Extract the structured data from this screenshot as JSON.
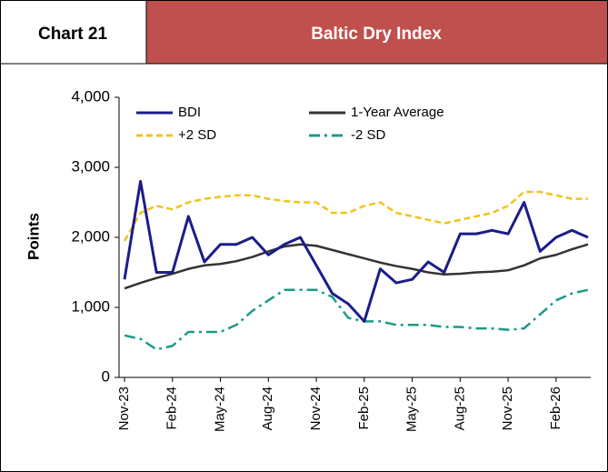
{
  "header": {
    "label": "Chart 21",
    "title": "Baltic Dry Index"
  },
  "chart_data": {
    "type": "line",
    "categories": [
      "Nov-23",
      null,
      null,
      "Feb-24",
      null,
      null,
      "May-24",
      null,
      null,
      "Aug-24",
      null,
      null,
      "Nov-24",
      null,
      null,
      "Feb-25",
      null,
      null,
      "May-25",
      null,
      null,
      "Aug-25",
      null,
      null,
      "Nov-25",
      null,
      null,
      "Feb-26",
      null,
      null
    ],
    "series": [
      {
        "name": "BDI",
        "color": "#1c1c8a",
        "style": "solid",
        "values": [
          1400,
          2800,
          1500,
          1500,
          2300,
          1650,
          1900,
          1900,
          2000,
          1750,
          1900,
          2000,
          1600,
          1200,
          1050,
          800,
          1550,
          1350,
          1400,
          1650,
          1500,
          2050,
          2050,
          2100,
          2050,
          2500,
          1800,
          2000,
          2100,
          2000
        ]
      },
      {
        "name": "1-Year Average",
        "color": "#333333",
        "style": "solid",
        "values": [
          1270,
          1350,
          1420,
          1480,
          1550,
          1600,
          1620,
          1660,
          1720,
          1800,
          1870,
          1900,
          1880,
          1820,
          1760,
          1700,
          1640,
          1590,
          1550,
          1500,
          1470,
          1480,
          1500,
          1510,
          1530,
          1600,
          1700,
          1750,
          1830,
          1900
        ]
      },
      {
        "name": "+2 SD",
        "color": "#f2c31a",
        "style": "dash",
        "values": [
          1950,
          2350,
          2450,
          2400,
          2500,
          2550,
          2580,
          2600,
          2600,
          2550,
          2520,
          2500,
          2500,
          2350,
          2350,
          2450,
          2500,
          2350,
          2300,
          2250,
          2200,
          2250,
          2300,
          2350,
          2450,
          2650,
          2650,
          2600,
          2550,
          2550
        ]
      },
      {
        "name": "-2 SD",
        "color": "#1a9a8a",
        "style": "dashdot",
        "values": [
          600,
          550,
          400,
          450,
          650,
          650,
          650,
          750,
          950,
          1100,
          1250,
          1250,
          1250,
          1150,
          850,
          800,
          800,
          750,
          750,
          750,
          720,
          720,
          700,
          700,
          680,
          700,
          900,
          1100,
          1200,
          1250
        ]
      }
    ],
    "y_label": "Points",
    "ylim": [
      0,
      4000
    ],
    "yticks": [
      0,
      {
        "value": 1000,
        "label": "1,000"
      },
      {
        "value": 2000,
        "label": "2,000"
      },
      {
        "value": 3000,
        "label": "3,000"
      },
      {
        "value": 4000,
        "label": "4,000"
      }
    ]
  }
}
